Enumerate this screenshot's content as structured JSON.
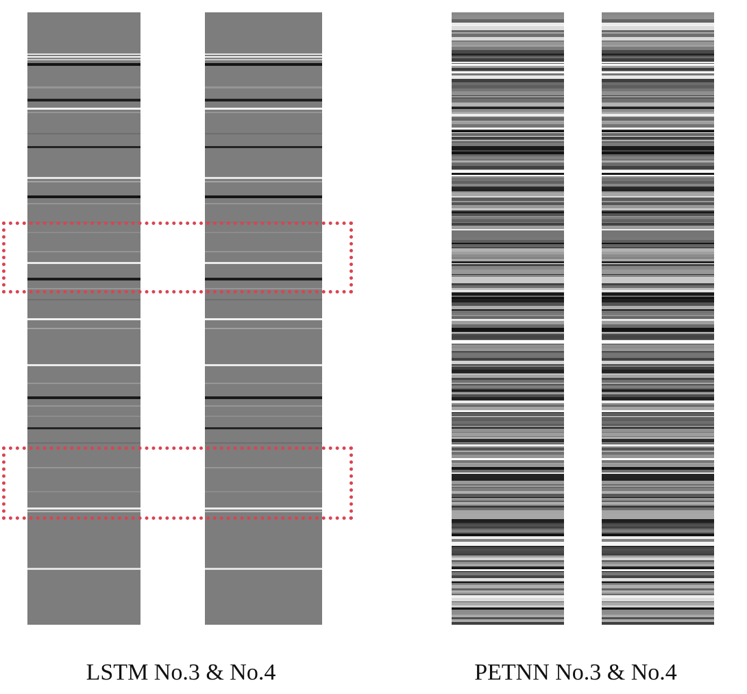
{
  "figure": {
    "panels": [
      {
        "caption": "LSTM No.3 & No.4",
        "base_gray": "#7d7d7d",
        "strips": [
          "LSTM No.3",
          "LSTM No.4"
        ],
        "highlight_color": "#d94452",
        "highlight_count": 2
      },
      {
        "caption": "PETNN No.3 & No.4",
        "base_gray": "#6a6a6a",
        "strips": [
          "PETNN No.3",
          "PETNN No.4"
        ]
      }
    ]
  }
}
